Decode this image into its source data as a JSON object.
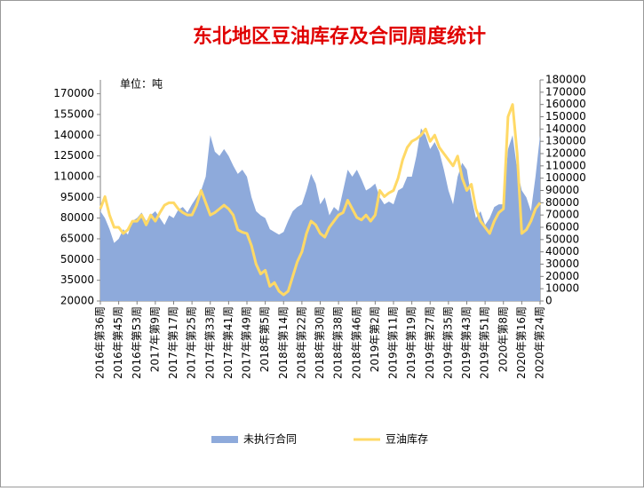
{
  "chart_data": {
    "type": "area_line",
    "title": "东北地区豆油库存及合同周度统计",
    "unit_label": "单位：吨",
    "categories": [
      "2016年第36周",
      null,
      null,
      null,
      "2016年第45周",
      null,
      null,
      null,
      "2016年第53周",
      null,
      null,
      null,
      "2017年第9周",
      null,
      null,
      null,
      "2017年第17周",
      null,
      null,
      null,
      "2017年第25周",
      null,
      null,
      null,
      "2017年第33周",
      null,
      null,
      null,
      "2017年第41周",
      null,
      null,
      null,
      "2017年第49周",
      null,
      null,
      null,
      "2018年第5周",
      null,
      null,
      null,
      "2018年第14周",
      null,
      null,
      null,
      "2018年第22周",
      null,
      null,
      null,
      "2018年第30周",
      null,
      null,
      null,
      "2018年第38周",
      null,
      null,
      null,
      "2018年第46周",
      null,
      null,
      null,
      "2019年第2周",
      null,
      null,
      null,
      "2019年第11周",
      null,
      null,
      null,
      "2019年第19周",
      null,
      null,
      null,
      "2019年第27周",
      null,
      null,
      null,
      "2019年第35周",
      null,
      null,
      null,
      "2019年第43周",
      null,
      null,
      null,
      "2019年第51周",
      null,
      null,
      null,
      "2020年第8周",
      null,
      null,
      null,
      "2020年第16周",
      null,
      null,
      null,
      "2020年第24周"
    ],
    "series": [
      {
        "name": "未执行合同",
        "color": "#8eaadb",
        "style": "area",
        "values": [
          85000,
          80000,
          72000,
          62000,
          65000,
          72000,
          68000,
          78000,
          80000,
          84000,
          78000,
          82000,
          85000,
          80000,
          75000,
          82000,
          80000,
          86000,
          88000,
          84000,
          90000,
          95000,
          100000,
          110000,
          140000,
          128000,
          125000,
          130000,
          125000,
          118000,
          112000,
          115000,
          110000,
          95000,
          85000,
          82000,
          80000,
          72000,
          70000,
          68000,
          70000,
          78000,
          85000,
          88000,
          90000,
          100000,
          112000,
          105000,
          90000,
          95000,
          82000,
          88000,
          85000,
          100000,
          115000,
          110000,
          115000,
          108000,
          100000,
          102000,
          105000,
          95000,
          90000,
          92000,
          90000,
          100000,
          102000,
          110000,
          110000,
          125000,
          145000,
          140000,
          130000,
          135000,
          128000,
          115000,
          100000,
          90000,
          110000,
          120000,
          115000,
          95000,
          80000,
          85000,
          75000,
          80000,
          88000,
          90000,
          90000,
          130000,
          140000,
          115000,
          100000,
          95000,
          85000,
          110000,
          140000
        ]
      },
      {
        "name": "豆油库存",
        "color": "#ffd966",
        "style": "line",
        "axis": "y2",
        "values": [
          75000,
          85000,
          70000,
          60000,
          60000,
          55000,
          58000,
          65000,
          65000,
          70000,
          62000,
          70000,
          65000,
          72000,
          78000,
          80000,
          80000,
          75000,
          72000,
          70000,
          70000,
          78000,
          90000,
          80000,
          70000,
          72000,
          75000,
          78000,
          75000,
          70000,
          58000,
          56000,
          55000,
          45000,
          30000,
          22000,
          25000,
          12000,
          15000,
          8000,
          5000,
          8000,
          20000,
          32000,
          40000,
          55000,
          65000,
          62000,
          55000,
          52000,
          60000,
          65000,
          70000,
          72000,
          82000,
          75000,
          68000,
          66000,
          70000,
          65000,
          70000,
          90000,
          85000,
          88000,
          90000,
          100000,
          115000,
          125000,
          130000,
          132000,
          135000,
          140000,
          130000,
          135000,
          125000,
          120000,
          115000,
          110000,
          118000,
          100000,
          90000,
          95000,
          75000,
          65000,
          60000,
          55000,
          65000,
          72000,
          75000,
          150000,
          160000,
          120000,
          55000,
          58000,
          65000,
          75000,
          80000
        ]
      }
    ],
    "ylim": [
      20000,
      180000
    ],
    "yticks": [
      20000,
      35000,
      50000,
      65000,
      80000,
      95000,
      110000,
      125000,
      140000,
      155000,
      170000
    ],
    "y2lim": [
      0,
      180000
    ],
    "y2ticks": [
      0,
      10000,
      20000,
      30000,
      40000,
      50000,
      60000,
      70000,
      80000,
      90000,
      100000,
      110000,
      120000,
      130000,
      140000,
      150000,
      160000,
      170000,
      180000
    ],
    "legend": "bottom"
  }
}
